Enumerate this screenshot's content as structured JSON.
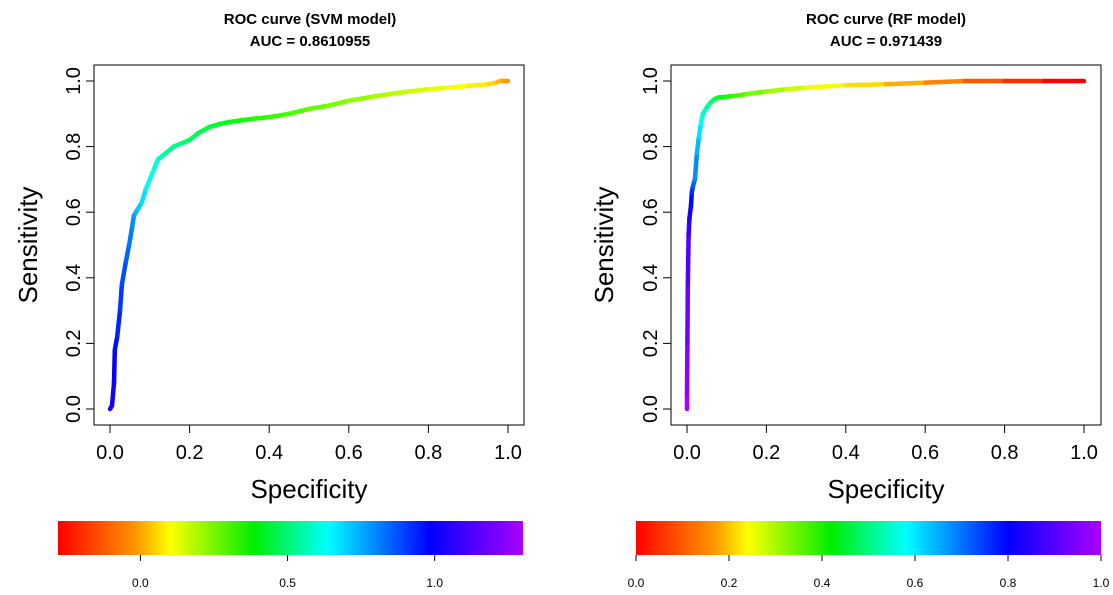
{
  "chart_data": [
    {
      "type": "line",
      "title": "ROC curve (SVM model)",
      "subtitle": "AUC = 0.8610955",
      "xlabel": "Specificity",
      "ylabel": "Sensitivity",
      "xlim": [
        0,
        1
      ],
      "ylim": [
        0,
        1
      ],
      "xticks": [
        "0.0",
        "0.2",
        "0.4",
        "0.6",
        "0.8",
        "1.0"
      ],
      "yticks": [
        "0.0",
        "0.2",
        "0.4",
        "0.6",
        "0.8",
        "1.0"
      ],
      "grid": false,
      "color_by": "threshold",
      "series": [
        {
          "x": [
            0.0,
            0.005,
            0.01,
            0.012,
            0.018,
            0.025,
            0.03,
            0.04,
            0.048,
            0.055,
            0.06,
            0.065,
            0.07,
            0.08,
            0.09,
            0.1,
            0.11,
            0.12,
            0.13,
            0.14,
            0.16,
            0.18,
            0.2,
            0.22,
            0.25,
            0.28,
            0.3,
            0.33,
            0.36,
            0.4,
            0.45,
            0.5,
            0.55,
            0.6,
            0.65,
            0.7,
            0.75,
            0.8,
            0.85,
            0.9,
            0.95,
            0.97,
            0.98,
            0.99,
            1.0
          ],
          "y": [
            0.0,
            0.01,
            0.08,
            0.18,
            0.22,
            0.3,
            0.38,
            0.45,
            0.5,
            0.55,
            0.59,
            0.6,
            0.61,
            0.63,
            0.67,
            0.7,
            0.73,
            0.76,
            0.77,
            0.78,
            0.8,
            0.81,
            0.82,
            0.84,
            0.86,
            0.87,
            0.875,
            0.88,
            0.885,
            0.89,
            0.9,
            0.915,
            0.925,
            0.94,
            0.95,
            0.96,
            0.968,
            0.975,
            0.98,
            0.985,
            0.99,
            0.995,
            1.0,
            1.0,
            1.0
          ]
        }
      ],
      "colorbar": {
        "ticks": [
          0.0,
          0.5,
          1.0
        ],
        "tick_labels": [
          "0.0",
          "0.5",
          "1.0"
        ],
        "range": [
          -0.28,
          1.3
        ]
      }
    },
    {
      "type": "line",
      "title": "ROC curve (RF model)",
      "subtitle": "AUC = 0.971439",
      "xlabel": "Specificity",
      "ylabel": "Sensitivity",
      "xlim": [
        0,
        1
      ],
      "ylim": [
        0,
        1
      ],
      "xticks": [
        "0.0",
        "0.2",
        "0.4",
        "0.6",
        "0.8",
        "1.0"
      ],
      "yticks": [
        "0.0",
        "0.2",
        "0.4",
        "0.6",
        "0.8",
        "1.0"
      ],
      "grid": false,
      "color_by": "threshold",
      "series": [
        {
          "x": [
            0.0,
            0.0,
            0.001,
            0.002,
            0.004,
            0.006,
            0.01,
            0.012,
            0.015,
            0.02,
            0.025,
            0.03,
            0.035,
            0.04,
            0.05,
            0.06,
            0.07,
            0.08,
            0.1,
            0.12,
            0.15,
            0.2,
            0.25,
            0.3,
            0.4,
            0.5,
            0.6,
            0.7,
            0.8,
            0.9,
            1.0
          ],
          "y": [
            0.0,
            0.05,
            0.2,
            0.38,
            0.53,
            0.58,
            0.62,
            0.66,
            0.68,
            0.7,
            0.78,
            0.83,
            0.87,
            0.9,
            0.92,
            0.935,
            0.945,
            0.95,
            0.952,
            0.955,
            0.96,
            0.968,
            0.975,
            0.98,
            0.987,
            0.99,
            0.995,
            1.0,
            1.0,
            1.0,
            1.0
          ]
        }
      ],
      "colorbar": {
        "ticks": [
          0.0,
          0.2,
          0.4,
          0.6,
          0.8,
          1.0
        ],
        "tick_labels": [
          "0.0",
          "0.2",
          "0.4",
          "0.6",
          "0.8",
          "1.0"
        ],
        "range": [
          0.0,
          1.0
        ]
      }
    }
  ]
}
